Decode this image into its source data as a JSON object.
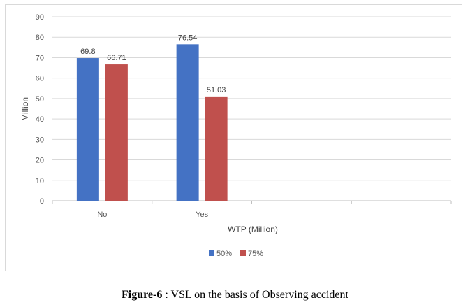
{
  "chart_data": {
    "type": "bar",
    "categories": [
      "No",
      "Yes",
      "",
      ""
    ],
    "series": [
      {
        "name": "50%",
        "color": "#4472c4",
        "values": [
          69.8,
          76.54,
          null,
          null
        ]
      },
      {
        "name": "75%",
        "color": "#c0504d",
        "values": [
          66.71,
          51.03,
          null,
          null
        ]
      }
    ],
    "data_labels": [
      [
        "69.8",
        "76.54"
      ],
      [
        "66.71",
        "51.03"
      ]
    ],
    "xlabel": "WTP (Million)",
    "ylabel": "Million",
    "ylim": [
      0,
      90
    ],
    "yticks": [
      0,
      10,
      20,
      30,
      40,
      50,
      60,
      70,
      80,
      90
    ],
    "grid": true,
    "legend_position": "bottom"
  },
  "caption": {
    "label": "Figure-6",
    "text": " : VSL on the basis of Observing accident"
  }
}
